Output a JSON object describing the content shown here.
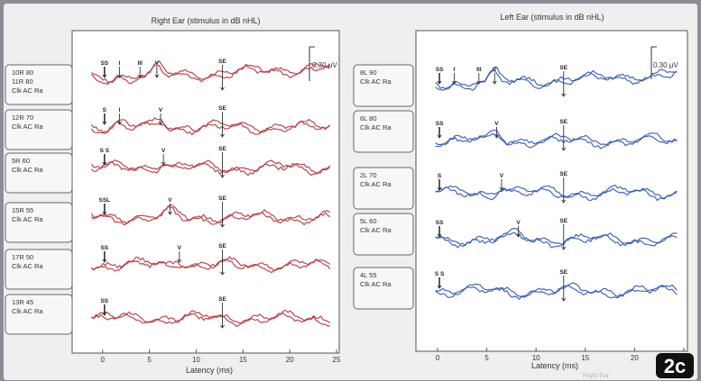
{
  "figure_label": "2c",
  "corner_text": "Right Ear",
  "colors": {
    "right": "#b5323f",
    "left": "#2f55b5",
    "paper": "#efefef",
    "panel": "#ffffff",
    "ink": "#333333",
    "grid": "#9a9a9a"
  },
  "chart_data": [
    {
      "type": "line",
      "title": "Right Ear (stimulus in dB nHL)",
      "xlabel": "Latency (ms)",
      "xlim": [
        -2,
        25
      ],
      "xticks": [
        0,
        5,
        10,
        15,
        20,
        25
      ],
      "scale_label": "0.30 μV",
      "traces": [
        {
          "labels": [
            "10R 80",
            "11R 80",
            "Clk AC Ra"
          ],
          "peaks": [
            {
              "label": "SS",
              "x": 0.2
            },
            {
              "label": "I",
              "x": 1.8
            },
            {
              "label": "III",
              "x": 4.0
            },
            {
              "label": "V",
              "x": 5.8
            },
            {
              "label": "SE",
              "x": 12.8
            }
          ]
        },
        {
          "labels": [
            "12R 70",
            "Clk AC Ra"
          ],
          "peaks": [
            {
              "label": "S",
              "x": 0.2
            },
            {
              "label": "I",
              "x": 1.8
            },
            {
              "label": "V",
              "x": 6.2
            },
            {
              "label": "SE",
              "x": 12.8
            }
          ]
        },
        {
          "labels": [
            "5R 60",
            "Clk AC Ra"
          ],
          "peaks": [
            {
              "label": "S S",
              "x": 0.2
            },
            {
              "label": "V",
              "x": 6.5
            },
            {
              "label": "SE",
              "x": 12.8
            }
          ]
        },
        {
          "labels": [
            "15R 55",
            "Clk AC Ra"
          ],
          "peaks": [
            {
              "label": "SSL",
              "x": 0.2
            },
            {
              "label": "V",
              "x": 7.2
            },
            {
              "label": "SE",
              "x": 12.8
            }
          ]
        },
        {
          "labels": [
            "17R 50",
            "Clk AC Ra"
          ],
          "peaks": [
            {
              "label": "SS",
              "x": 0.2
            },
            {
              "label": "V",
              "x": 8.2
            },
            {
              "label": "SE",
              "x": 12.8
            }
          ]
        },
        {
          "labels": [
            "13R 45",
            "Clk AC Ra"
          ],
          "peaks": [
            {
              "label": "SS",
              "x": 0.2
            },
            {
              "label": "SE",
              "x": 12.8
            }
          ]
        }
      ]
    },
    {
      "type": "line",
      "title": "Left Ear (stimulus in dB nHL)",
      "xlabel": "Latency (ms)",
      "xlim": [
        -1,
        25
      ],
      "xticks": [
        0,
        5,
        10,
        15,
        20,
        25
      ],
      "scale_label": "0.30 μV",
      "traces": [
        {
          "labels": [
            "8L 90",
            "Clk AC Ra"
          ],
          "peaks": [
            {
              "label": "SS",
              "x": 0.2
            },
            {
              "label": "I",
              "x": 1.7
            },
            {
              "label": "III",
              "x": 4.2
            },
            {
              "label": "V",
              "x": 5.8
            },
            {
              "label": "SE",
              "x": 12.8
            }
          ]
        },
        {
          "labels": [
            "6L 80",
            "Clk AC Ra"
          ],
          "peaks": [
            {
              "label": "SS",
              "x": 0.2
            },
            {
              "label": "V",
              "x": 6.0
            },
            {
              "label": "SE",
              "x": 12.8
            }
          ]
        },
        {
          "labels": [
            "2L 70",
            "Clk AC Ra"
          ],
          "peaks": [
            {
              "label": "S",
              "x": 0.2
            },
            {
              "label": "V",
              "x": 6.5
            },
            {
              "label": "SE",
              "x": 12.8
            }
          ]
        },
        {
          "labels": [
            "5L 60",
            "Clk AC Ra"
          ],
          "peaks": [
            {
              "label": "SS",
              "x": 0.2
            },
            {
              "label": "V",
              "x": 8.2
            },
            {
              "label": "SE",
              "x": 12.8
            }
          ]
        },
        {
          "labels": [
            "4L 55",
            "Clk AC Ra"
          ],
          "peaks": [
            {
              "label": "S S",
              "x": 0.2
            },
            {
              "label": "SE",
              "x": 12.8
            }
          ]
        }
      ]
    }
  ]
}
